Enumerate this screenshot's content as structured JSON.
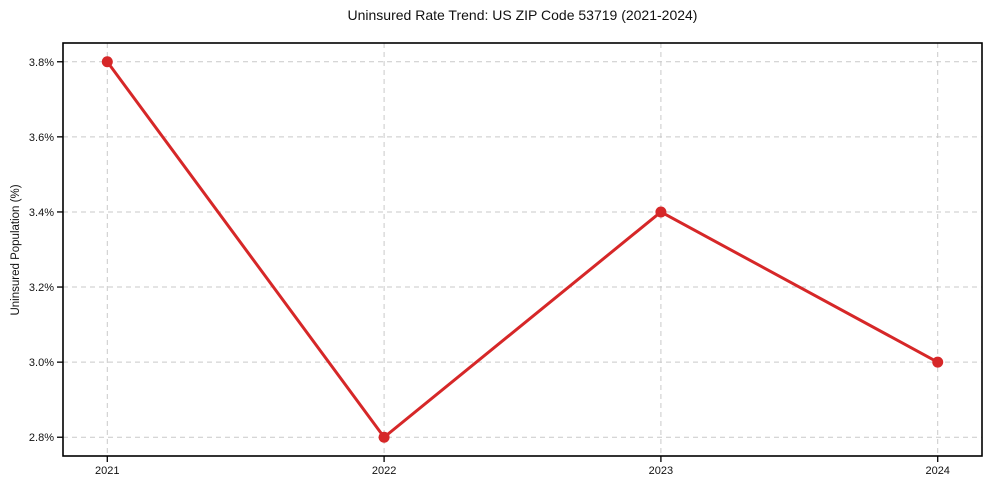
{
  "chart_data": {
    "type": "line",
    "title": "Uninsured Rate Trend: US ZIP Code 53719 (2021-2024)",
    "xlabel": "",
    "ylabel": "Uninsured Population (%)",
    "x": [
      2021,
      2022,
      2023,
      2024
    ],
    "values": [
      3.8,
      2.8,
      3.4,
      3.0
    ],
    "xticks": [
      2021,
      2022,
      2023,
      2024
    ],
    "xtick_labels": [
      "2021",
      "2022",
      "2023",
      "2024"
    ],
    "yticks": [
      2.8,
      3.0,
      3.2,
      3.4,
      3.6,
      3.8
    ],
    "ytick_labels": [
      "2.8%",
      "3.0%",
      "3.2%",
      "3.4%",
      "3.6%",
      "3.8%"
    ],
    "xlim": [
      2020.84,
      2024.16
    ],
    "ylim": [
      2.75,
      3.85
    ],
    "grid": true,
    "grid_linestyle": "dashed",
    "grid_color": "#c9c9c9",
    "line_color": "#d62728",
    "marker": "o",
    "marker_color": "#d62728",
    "background_color": "#ffffff",
    "legend_position": "none"
  }
}
